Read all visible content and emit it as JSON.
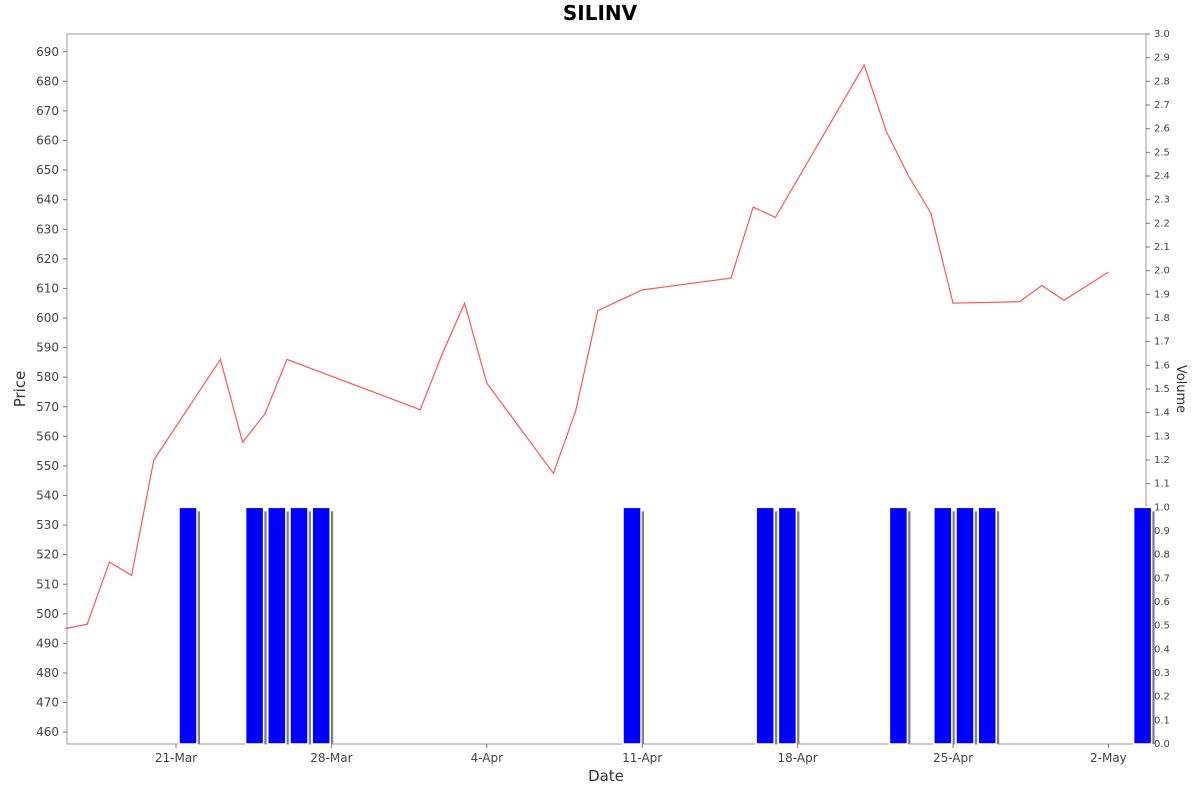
{
  "chart_data": {
    "type": "line",
    "title": "SILINV",
    "xlabel": "Date",
    "ylabel": "Price",
    "y2label": "Volume",
    "ylim": [
      456,
      696
    ],
    "y2lim": [
      0.0,
      3.0
    ],
    "grid": false,
    "x_ticks": [
      {
        "date": "2024-03-21",
        "label": "21-Mar"
      },
      {
        "date": "2024-03-28",
        "label": "28-Mar"
      },
      {
        "date": "2024-04-04",
        "label": "4-Apr"
      },
      {
        "date": "2024-04-11",
        "label": "11-Apr"
      },
      {
        "date": "2024-04-18",
        "label": "18-Apr"
      },
      {
        "date": "2024-04-25",
        "label": "25-Apr"
      },
      {
        "date": "2024-05-02",
        "label": "2-May"
      }
    ],
    "y_ticks": [
      460,
      470,
      480,
      490,
      500,
      510,
      520,
      530,
      540,
      550,
      560,
      570,
      580,
      590,
      600,
      610,
      620,
      630,
      640,
      650,
      660,
      670,
      680,
      690
    ],
    "y2_ticks": [
      "0.0",
      "0.1",
      "0.2",
      "0.3",
      "0.4",
      "0.5",
      "0.6",
      "0.7",
      "0.8",
      "0.9",
      "1.0",
      "1.1",
      "1.2",
      "1.3",
      "1.4",
      "1.5",
      "1.6",
      "1.7",
      "1.8",
      "1.9",
      "2.0",
      "2.1",
      "2.2",
      "2.3",
      "2.4",
      "2.5",
      "2.6",
      "2.7",
      "2.8",
      "2.9",
      "3.0"
    ],
    "colors": {
      "price_line": "#ff5555",
      "volume_bar": "#0000ff",
      "bar_shadow": "#808080"
    },
    "series": [
      {
        "type": "line",
        "axis": "left",
        "points": [
          {
            "x": "2024-03-16",
            "y": 495
          },
          {
            "x": "2024-03-17",
            "y": 496.5
          },
          {
            "x": "2024-03-18",
            "y": 517.5
          },
          {
            "x": "2024-03-19",
            "y": 513
          },
          {
            "x": "2024-03-20",
            "y": 552
          },
          {
            "x": "2024-03-23",
            "y": 586
          },
          {
            "x": "2024-03-24",
            "y": 558
          },
          {
            "x": "2024-03-25",
            "y": 567.5
          },
          {
            "x": "2024-03-26",
            "y": 586
          },
          {
            "x": "2024-04-01",
            "y": 569
          },
          {
            "x": "2024-04-02",
            "y": 588
          },
          {
            "x": "2024-04-03",
            "y": 605
          },
          {
            "x": "2024-04-04",
            "y": 578
          },
          {
            "x": "2024-04-07",
            "y": 547.5
          },
          {
            "x": "2024-04-08",
            "y": 568.5
          },
          {
            "x": "2024-04-09",
            "y": 602.5
          },
          {
            "x": "2024-04-11",
            "y": 609.5
          },
          {
            "x": "2024-04-15",
            "y": 613.5
          },
          {
            "x": "2024-04-16",
            "y": 637.5
          },
          {
            "x": "2024-04-17",
            "y": 634
          },
          {
            "x": "2024-04-21",
            "y": 685.5
          },
          {
            "x": "2024-04-22",
            "y": 663
          },
          {
            "x": "2024-04-23",
            "y": 648
          },
          {
            "x": "2024-04-24",
            "y": 635.5
          },
          {
            "x": "2024-04-25",
            "y": 605
          },
          {
            "x": "2024-04-28",
            "y": 605.5
          },
          {
            "x": "2024-04-29",
            "y": 611
          },
          {
            "x": "2024-04-30",
            "y": 606
          },
          {
            "x": "2024-05-02",
            "y": 615.5
          }
        ]
      },
      {
        "type": "bar",
        "axis": "right",
        "points": [
          {
            "x": "2024-03-21",
            "y": 1.0
          },
          {
            "x": "2024-03-24",
            "y": 1.0
          },
          {
            "x": "2024-03-25",
            "y": 1.0
          },
          {
            "x": "2024-03-26",
            "y": 1.0
          },
          {
            "x": "2024-03-27",
            "y": 1.0
          },
          {
            "x": "2024-04-10",
            "y": 1.0
          },
          {
            "x": "2024-04-16",
            "y": 1.0
          },
          {
            "x": "2024-04-17",
            "y": 1.0
          },
          {
            "x": "2024-04-22",
            "y": 1.0
          },
          {
            "x": "2024-04-24",
            "y": 1.0
          },
          {
            "x": "2024-04-25",
            "y": 1.0
          },
          {
            "x": "2024-04-26",
            "y": 1.0
          },
          {
            "x": "2024-05-03",
            "y": 1.0
          }
        ]
      }
    ]
  }
}
